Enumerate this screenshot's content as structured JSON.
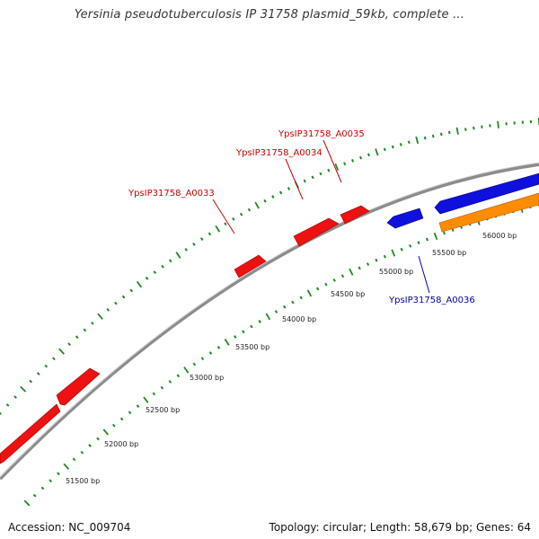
{
  "title": "Yersinia pseudotuberculosis IP 31758 plasmid_59kb, complete ...",
  "accession": "Accession: NC_009704",
  "summary": "Topology: circular; Length: 58,679 bp; Genes: 64",
  "colors": {
    "backbone": "#8c8c8c",
    "tick": "#1f8a1f",
    "forward_gene": "#ee1111",
    "reverse_gene": "#1010dd",
    "orange_track": "#ff8c00",
    "forward_label": "#cc0000",
    "reverse_label": "#0000aa"
  },
  "scale_labels": [
    "51500 bp",
    "52000 bp",
    "52500 bp",
    "53000 bp",
    "53500 bp",
    "54000 bp",
    "54500 bp",
    "55000 bp",
    "55500 bp",
    "56000 bp"
  ],
  "gene_labels": [
    {
      "text": "YpsIP31758_A0033",
      "strand": "forward"
    },
    {
      "text": "YpsIP31758_A0034",
      "strand": "forward"
    },
    {
      "text": "YpsIP31758_A0035",
      "strand": "forward"
    },
    {
      "text": "YpsIP31758_A0036",
      "strand": "reverse"
    }
  ]
}
